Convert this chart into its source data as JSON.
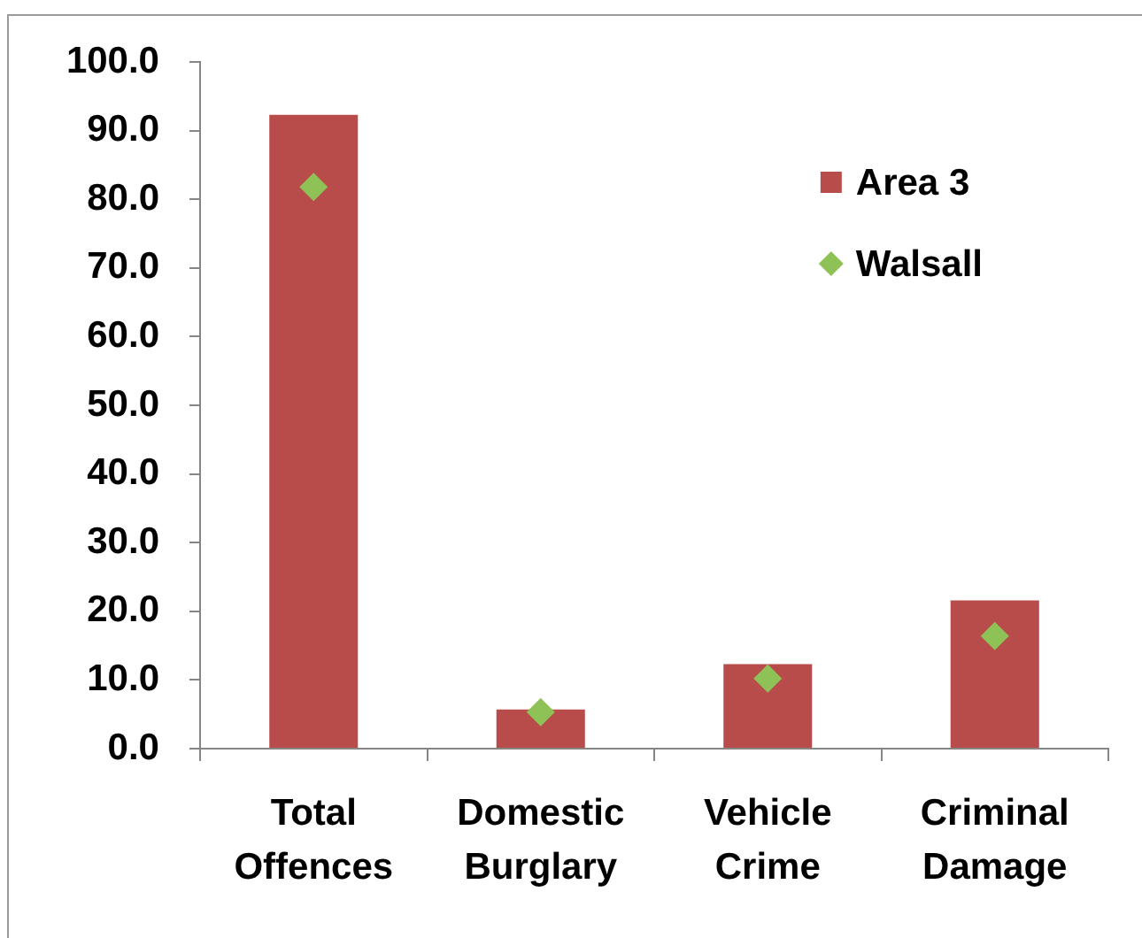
{
  "chart_data": {
    "type": "bar",
    "categories": [
      "Total Offences",
      "Domestic Burglary",
      "Vehicle Crime",
      "Criminal Damage"
    ],
    "series": [
      {
        "name": "Area 3",
        "color": "#b84c4a",
        "values": [
          92.3,
          5.7,
          12.3,
          21.6
        ]
      },
      {
        "name": "Walsall",
        "type": "scatter",
        "marker": "diamond",
        "color": "#8fc256",
        "x": [
          "Total Offences",
          "Domestic Burglary",
          "Vehicle Crime",
          "Criminal Damage"
        ],
        "values": [
          81.8,
          5.3,
          10.2,
          16.4
        ]
      }
    ],
    "ylim": [
      0,
      100
    ],
    "yticks": [
      {
        "value": 0,
        "label": "0.0"
      },
      {
        "value": 10,
        "label": "10.0"
      },
      {
        "value": 20,
        "label": "20.0"
      },
      {
        "value": 30,
        "label": "30.0"
      },
      {
        "value": 40,
        "label": "40.0"
      },
      {
        "value": 50,
        "label": "50.0"
      },
      {
        "value": 60,
        "label": "60.0"
      },
      {
        "value": 70,
        "label": "70.0"
      },
      {
        "value": 80,
        "label": "80.0"
      },
      {
        "value": 90,
        "label": "90.0"
      },
      {
        "value": 100,
        "label": "100.0"
      }
    ],
    "grid": false,
    "legend": "top right"
  }
}
